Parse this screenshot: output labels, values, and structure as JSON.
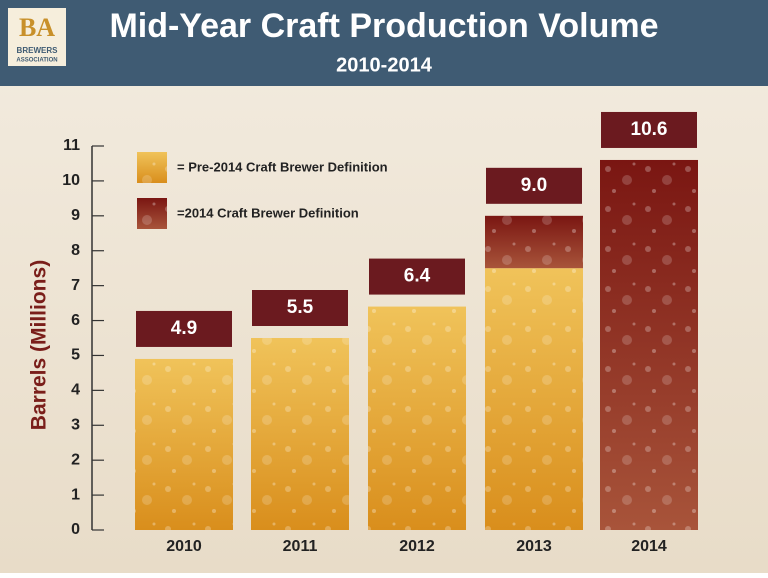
{
  "chart_data": {
    "type": "stacked-bar",
    "title": "Mid-Year Craft Production Volume",
    "subtitle": "2010-2014",
    "logo": {
      "mark": "BA",
      "line1": "BREWERS",
      "line2": "ASSOCIATION"
    },
    "y_label": "Barrels (Millions)",
    "categories": [
      "2010",
      "2011",
      "2012",
      "2013",
      "2014"
    ],
    "series": [
      {
        "name": "= Pre-2014 Craft Brewer Definition",
        "color": "#e6a22a",
        "values": [
          4.9,
          5.5,
          6.4,
          7.5,
          null
        ]
      },
      {
        "name": "=2014 Craft Brewer Definition",
        "color": "#8a2a1c",
        "values": [
          null,
          null,
          null,
          1.5,
          10.6
        ]
      }
    ],
    "value_labels": [
      "4.9",
      "5.5",
      "6.4",
      "9.0",
      "10.6"
    ],
    "ylim": [
      0,
      11
    ],
    "yticks": [
      0,
      1,
      2,
      3,
      4,
      5,
      6,
      7,
      8,
      9,
      10,
      11
    ]
  }
}
